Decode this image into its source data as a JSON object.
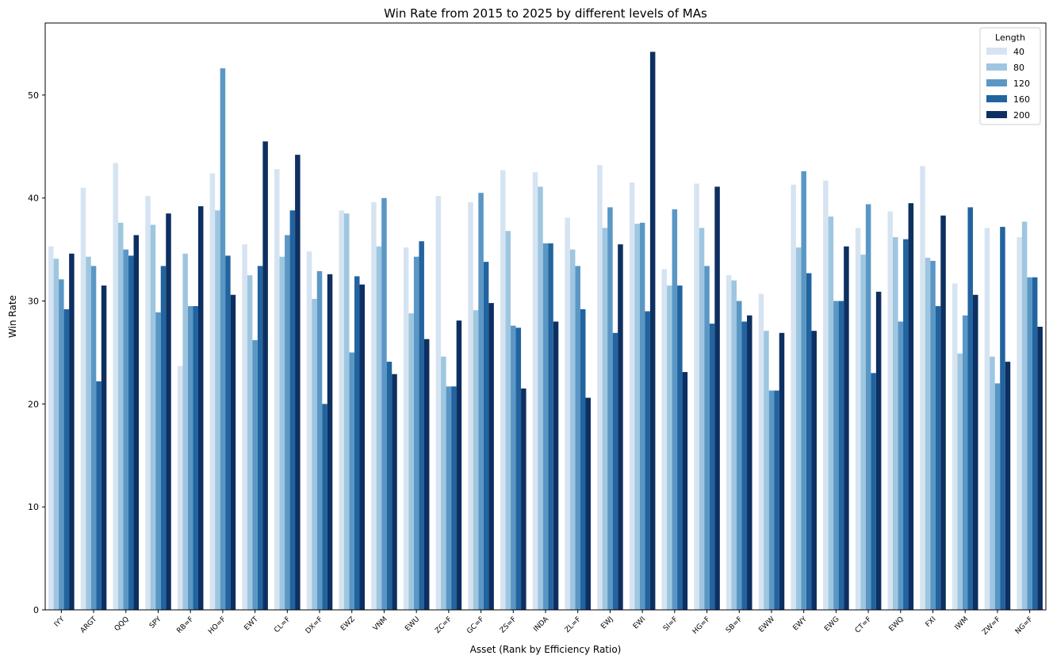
{
  "chart_data": {
    "type": "bar",
    "title": "Win Rate from 2015 to 2025 by different levels of MAs",
    "xlabel": "Asset (Rank by Efficiency Ratio)",
    "ylabel": "Win Rate",
    "ylim": [
      0,
      57
    ],
    "yticks": [
      0,
      10,
      20,
      30,
      40,
      50
    ],
    "grid": false,
    "legend": {
      "title": "Length",
      "placement": "top-right"
    },
    "categories": [
      "IYY",
      "ARGT",
      "QQQ",
      "SPY",
      "RB=F",
      "HO=F",
      "EWT",
      "CL=F",
      "DX=F",
      "EWZ",
      "VNM",
      "EWU",
      "ZC=F",
      "GC=F",
      "ZS=F",
      "INDA",
      "ZL=F",
      "EWJ",
      "EWI",
      "SI=F",
      "HG=F",
      "SB=F",
      "EWW",
      "EWY",
      "EWG",
      "CT=F",
      "EWQ",
      "FXI",
      "IWM",
      "ZW=F",
      "NG=F"
    ],
    "series": [
      {
        "name": "40",
        "color": "#d6e4f2",
        "values": [
          35.3,
          41.0,
          43.4,
          40.2,
          23.7,
          42.4,
          35.5,
          42.8,
          34.8,
          38.8,
          39.6,
          35.2,
          40.2,
          39.6,
          42.7,
          42.5,
          38.1,
          43.2,
          41.5,
          33.1,
          41.4,
          32.5,
          30.7,
          41.3,
          41.7,
          37.1,
          38.7,
          43.1,
          31.7,
          37.1,
          36.2
        ]
      },
      {
        "name": "80",
        "color": "#9ec6e0",
        "values": [
          34.1,
          34.3,
          37.6,
          37.4,
          34.6,
          38.8,
          32.5,
          34.3,
          30.2,
          38.5,
          35.3,
          28.8,
          24.6,
          29.1,
          36.8,
          41.1,
          35.0,
          37.1,
          37.5,
          31.5,
          37.1,
          32.0,
          27.1,
          35.2,
          38.2,
          34.5,
          36.2,
          34.2,
          24.9,
          24.6,
          37.7
        ]
      },
      {
        "name": "120",
        "color": "#5b97c5",
        "values": [
          32.1,
          33.4,
          35.0,
          28.9,
          29.5,
          52.6,
          26.2,
          36.4,
          32.9,
          25.0,
          40.0,
          34.3,
          21.7,
          40.5,
          27.6,
          35.6,
          33.4,
          39.1,
          37.6,
          38.9,
          33.4,
          30.0,
          21.3,
          42.6,
          30.0,
          39.4,
          28.0,
          33.9,
          28.6,
          22.0,
          32.3
        ]
      },
      {
        "name": "160",
        "color": "#21649f",
        "values": [
          29.2,
          22.2,
          34.4,
          33.4,
          29.5,
          34.4,
          33.4,
          38.8,
          20.0,
          32.4,
          24.1,
          35.8,
          21.7,
          33.8,
          27.4,
          35.6,
          29.2,
          26.9,
          29.0,
          31.5,
          27.8,
          28.0,
          21.3,
          32.7,
          30.0,
          23.0,
          36.0,
          29.5,
          39.1,
          37.2,
          32.3
        ]
      },
      {
        "name": "200",
        "color": "#0d2f61",
        "values": [
          34.6,
          31.5,
          36.4,
          38.5,
          39.2,
          30.6,
          45.5,
          44.2,
          32.6,
          31.6,
          22.9,
          26.3,
          28.1,
          29.8,
          21.5,
          28.0,
          20.6,
          35.5,
          54.2,
          23.1,
          41.1,
          28.6,
          26.9,
          27.1,
          35.3,
          30.9,
          39.5,
          38.3,
          30.6,
          24.1,
          27.5
        ]
      }
    ]
  }
}
